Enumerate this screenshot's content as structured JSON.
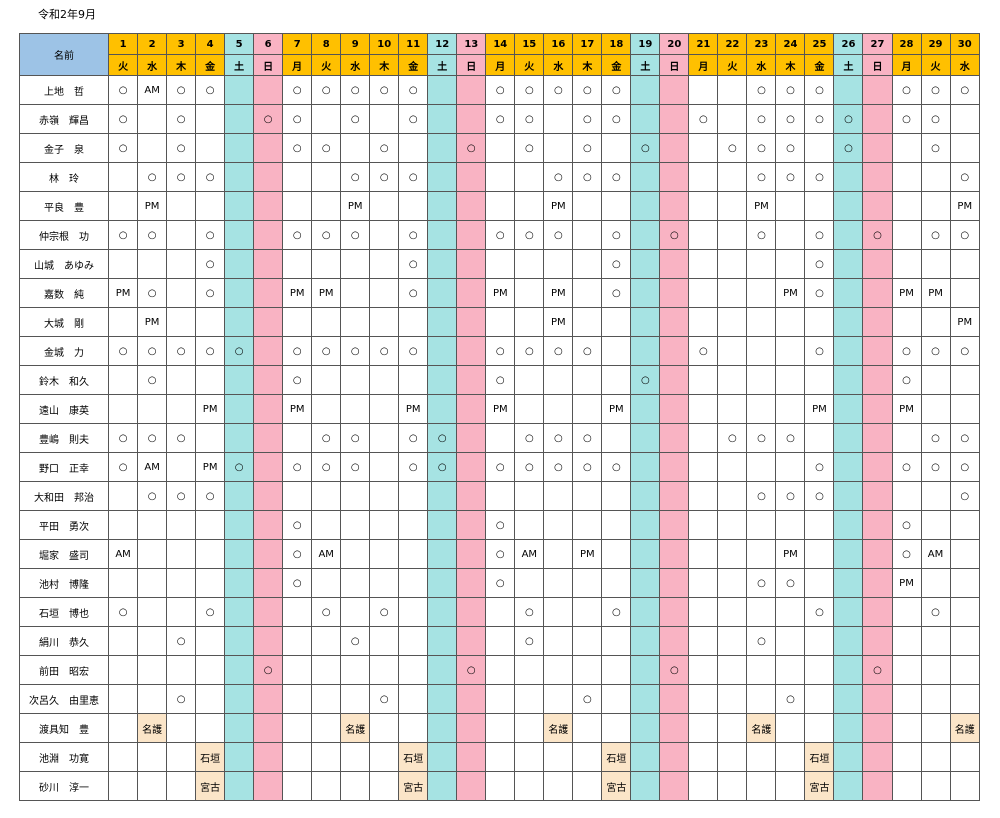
{
  "title": "令和2年9月",
  "name_header": "名前",
  "days": [
    {
      "d": "1",
      "w": "火"
    },
    {
      "d": "2",
      "w": "水"
    },
    {
      "d": "3",
      "w": "木"
    },
    {
      "d": "4",
      "w": "金"
    },
    {
      "d": "5",
      "w": "土"
    },
    {
      "d": "6",
      "w": "日"
    },
    {
      "d": "7",
      "w": "月"
    },
    {
      "d": "8",
      "w": "火"
    },
    {
      "d": "9",
      "w": "水"
    },
    {
      "d": "10",
      "w": "木"
    },
    {
      "d": "11",
      "w": "金"
    },
    {
      "d": "12",
      "w": "土"
    },
    {
      "d": "13",
      "w": "日"
    },
    {
      "d": "14",
      "w": "月"
    },
    {
      "d": "15",
      "w": "火"
    },
    {
      "d": "16",
      "w": "水"
    },
    {
      "d": "17",
      "w": "木"
    },
    {
      "d": "18",
      "w": "金"
    },
    {
      "d": "19",
      "w": "土"
    },
    {
      "d": "20",
      "w": "日"
    },
    {
      "d": "21",
      "w": "月"
    },
    {
      "d": "22",
      "w": "火"
    },
    {
      "d": "23",
      "w": "水"
    },
    {
      "d": "24",
      "w": "木"
    },
    {
      "d": "25",
      "w": "金"
    },
    {
      "d": "26",
      "w": "土"
    },
    {
      "d": "27",
      "w": "日"
    },
    {
      "d": "28",
      "w": "月"
    },
    {
      "d": "29",
      "w": "火"
    },
    {
      "d": "30",
      "w": "水"
    }
  ],
  "rows": [
    {
      "name": "上地　哲",
      "cells": [
        "○",
        "AM",
        "○",
        "○",
        "",
        "",
        "○",
        "○",
        "○",
        "○",
        "○",
        "",
        "",
        "○",
        "○",
        "○",
        "○",
        "○",
        "",
        "",
        "",
        "",
        "○",
        "○",
        "○",
        "",
        "",
        "○",
        "○",
        "○"
      ]
    },
    {
      "name": "赤嶺　輝昌",
      "cells": [
        "○",
        "",
        "○",
        "",
        "",
        "○",
        "○",
        "",
        "○",
        "",
        "○",
        "",
        "",
        "○",
        "○",
        "",
        "○",
        "○",
        "",
        "",
        "○",
        "",
        "○",
        "○",
        "○",
        "○",
        "",
        "○",
        "○",
        ""
      ]
    },
    {
      "name": "金子　泉",
      "cells": [
        "○",
        "",
        "○",
        "",
        "",
        "",
        "○",
        "○",
        "",
        "○",
        "",
        "",
        "○",
        "",
        "○",
        "",
        "○",
        "",
        "○",
        "",
        "",
        "○",
        "○",
        "○",
        "",
        "○",
        "",
        "",
        "○",
        ""
      ]
    },
    {
      "name": "林　玲",
      "cells": [
        "",
        "○",
        "○",
        "○",
        "",
        "",
        "",
        "",
        "○",
        "○",
        "○",
        "",
        "",
        "",
        "",
        "○",
        "○",
        "○",
        "",
        "",
        "",
        "",
        "○",
        "○",
        "○",
        "",
        "",
        "",
        "",
        "○"
      ]
    },
    {
      "name": "平良　豊",
      "cells": [
        "",
        "PM",
        "",
        "",
        "",
        "",
        "",
        "",
        "PM",
        "",
        "",
        "",
        "",
        "",
        "",
        "PM",
        "",
        "",
        "",
        "",
        "",
        "",
        "PM",
        "",
        "",
        "",
        "",
        "",
        "",
        "PM"
      ]
    },
    {
      "name": "仲宗根　功",
      "cells": [
        "○",
        "○",
        "",
        "○",
        "",
        "",
        "○",
        "○",
        "○",
        "",
        "○",
        "",
        "",
        "○",
        "○",
        "○",
        "",
        "○",
        "",
        "○",
        "",
        "",
        "○",
        "",
        "○",
        "",
        "○",
        "",
        "○",
        "○"
      ]
    },
    {
      "name": "山城　あゆみ",
      "cells": [
        "",
        "",
        "",
        "○",
        "",
        "",
        "",
        "",
        "",
        "",
        "○",
        "",
        "",
        "",
        "",
        "",
        "",
        "○",
        "",
        "",
        "",
        "",
        "",
        "",
        "○",
        "",
        "",
        "",
        "",
        ""
      ]
    },
    {
      "name": "嘉数　純",
      "cells": [
        "PM",
        "○",
        "",
        "○",
        "",
        "",
        "PM",
        "PM",
        "",
        "",
        "○",
        "",
        "",
        "PM",
        "",
        "PM",
        "",
        "○",
        "",
        "",
        "",
        "",
        "",
        "PM",
        "○",
        "",
        "",
        "PM",
        "PM",
        ""
      ]
    },
    {
      "name": "大城　剛",
      "cells": [
        "",
        "PM",
        "",
        "",
        "",
        "",
        "",
        "",
        "",
        "",
        "",
        "",
        "",
        "",
        "",
        "PM",
        "",
        "",
        "",
        "",
        "",
        "",
        "",
        "",
        "",
        "",
        "",
        "",
        "",
        "PM"
      ]
    },
    {
      "name": "金城　力",
      "cells": [
        "○",
        "○",
        "○",
        "○",
        "○",
        "",
        "○",
        "○",
        "○",
        "○",
        "○",
        "",
        "",
        "○",
        "○",
        "○",
        "○",
        "",
        "",
        "",
        "○",
        "",
        "",
        "",
        "○",
        "",
        "",
        "○",
        "○",
        "○"
      ]
    },
    {
      "name": "鈴木　和久",
      "cells": [
        "",
        "○",
        "",
        "",
        "",
        "",
        "○",
        "",
        "",
        "",
        "",
        "",
        "",
        "○",
        "",
        "",
        "",
        "",
        "○",
        "",
        "",
        "",
        "",
        "",
        "",
        "",
        "",
        "○",
        "",
        ""
      ]
    },
    {
      "name": "遠山　康英",
      "cells": [
        "",
        "",
        "",
        "PM",
        "",
        "",
        "PM",
        "",
        "",
        "",
        "PM",
        "",
        "",
        "PM",
        "",
        "",
        "",
        "PM",
        "",
        "",
        "",
        "",
        "",
        "",
        "PM",
        "",
        "",
        "PM",
        "",
        ""
      ]
    },
    {
      "name": "豊嶋　則夫",
      "cells": [
        "○",
        "○",
        "○",
        "",
        "",
        "",
        "",
        "○",
        "○",
        "",
        "○",
        "○",
        "",
        "",
        "○",
        "○",
        "○",
        "",
        "",
        "",
        "",
        "○",
        "○",
        "○",
        "",
        "",
        "",
        "",
        "○",
        "○"
      ]
    },
    {
      "name": "野口　正幸",
      "cells": [
        "○",
        "AM",
        "",
        "PM",
        "○",
        "",
        "○",
        "○",
        "○",
        "",
        "○",
        "○",
        "",
        "○",
        "○",
        "○",
        "○",
        "○",
        "",
        "",
        "",
        "",
        "",
        "",
        "○",
        "",
        "",
        "○",
        "○",
        "○"
      ]
    },
    {
      "name": "大和田　邦治",
      "cells": [
        "",
        "○",
        "○",
        "○",
        "",
        "",
        "",
        "",
        "",
        "",
        "",
        "",
        "",
        "",
        "",
        "",
        "",
        "",
        "",
        "",
        "",
        "",
        "○",
        "○",
        "○",
        "",
        "",
        "",
        "",
        "○"
      ]
    },
    {
      "name": "平田　勇次",
      "cells": [
        "",
        "",
        "",
        "",
        "",
        "",
        "○",
        "",
        "",
        "",
        "",
        "",
        "",
        "○",
        "",
        "",
        "",
        "",
        "",
        "",
        "",
        "",
        "",
        "",
        "",
        "",
        "",
        "○",
        "",
        ""
      ]
    },
    {
      "name": "堀家　盛司",
      "cells": [
        "AM",
        "",
        "",
        "",
        "",
        "",
        "○",
        "AM",
        "",
        "",
        "",
        "",
        "",
        "○",
        "AM",
        "",
        "PM",
        "",
        "",
        "",
        "",
        "",
        "",
        "PM",
        "",
        "",
        "",
        "○",
        "AM",
        ""
      ]
    },
    {
      "name": "池村　博隆",
      "cells": [
        "",
        "",
        "",
        "",
        "",
        "",
        "○",
        "",
        "",
        "",
        "",
        "",
        "",
        "○",
        "",
        "",
        "",
        "",
        "",
        "",
        "",
        "",
        "○",
        "○",
        "",
        "",
        "",
        "PM",
        "",
        ""
      ]
    },
    {
      "name": "石垣　博也",
      "cells": [
        "○",
        "",
        "",
        "○",
        "",
        "",
        "",
        "○",
        "",
        "○",
        "",
        "",
        "",
        "",
        "○",
        "",
        "",
        "○",
        "",
        "",
        "",
        "",
        "",
        "",
        "○",
        "",
        "",
        "",
        "○",
        ""
      ]
    },
    {
      "name": "絹川　恭久",
      "cells": [
        "",
        "",
        "○",
        "",
        "",
        "",
        "",
        "",
        "○",
        "",
        "",
        "",
        "",
        "",
        "○",
        "",
        "",
        "",
        "",
        "",
        "",
        "",
        "○",
        "",
        "",
        "",
        "",
        "",
        "",
        ""
      ]
    },
    {
      "name": "前田　昭宏",
      "cells": [
        "",
        "",
        "",
        "",
        "",
        "○",
        "",
        "",
        "",
        "",
        "",
        "",
        "○",
        "",
        "",
        "",
        "",
        "",
        "",
        "○",
        "",
        "",
        "",
        "",
        "",
        "",
        "○",
        "",
        "",
        ""
      ]
    },
    {
      "name": "次呂久　由里恵",
      "cells": [
        "",
        "",
        "○",
        "",
        "",
        "",
        "",
        "",
        "",
        "○",
        "",
        "",
        "",
        "",
        "",
        "",
        "○",
        "",
        "",
        "",
        "",
        "",
        "",
        "○",
        "",
        "",
        "",
        "",
        "",
        ""
      ]
    },
    {
      "name": "渡具知　豊",
      "cells": [
        "",
        "名護",
        "",
        "",
        "",
        "",
        "",
        "",
        "名護",
        "",
        "",
        "",
        "",
        "",
        "",
        "名護",
        "",
        "",
        "",
        "",
        "",
        "",
        "名護",
        "",
        "",
        "",
        "",
        "",
        "",
        "名護"
      ]
    },
    {
      "name": "池淵　功寛",
      "cells": [
        "",
        "",
        "",
        "石垣",
        "",
        "",
        "",
        "",
        "",
        "",
        "石垣",
        "",
        "",
        "",
        "",
        "",
        "",
        "石垣",
        "",
        "",
        "",
        "",
        "",
        "",
        "石垣",
        "",
        "",
        "",
        "",
        ""
      ]
    },
    {
      "name": "砂川　淳一",
      "cells": [
        "",
        "",
        "",
        "宮古",
        "",
        "",
        "",
        "",
        "",
        "",
        "宮古",
        "",
        "",
        "",
        "",
        "",
        "",
        "宮古",
        "",
        "",
        "",
        "",
        "",
        "",
        "宮古",
        "",
        "",
        "",
        "",
        ""
      ]
    }
  ]
}
